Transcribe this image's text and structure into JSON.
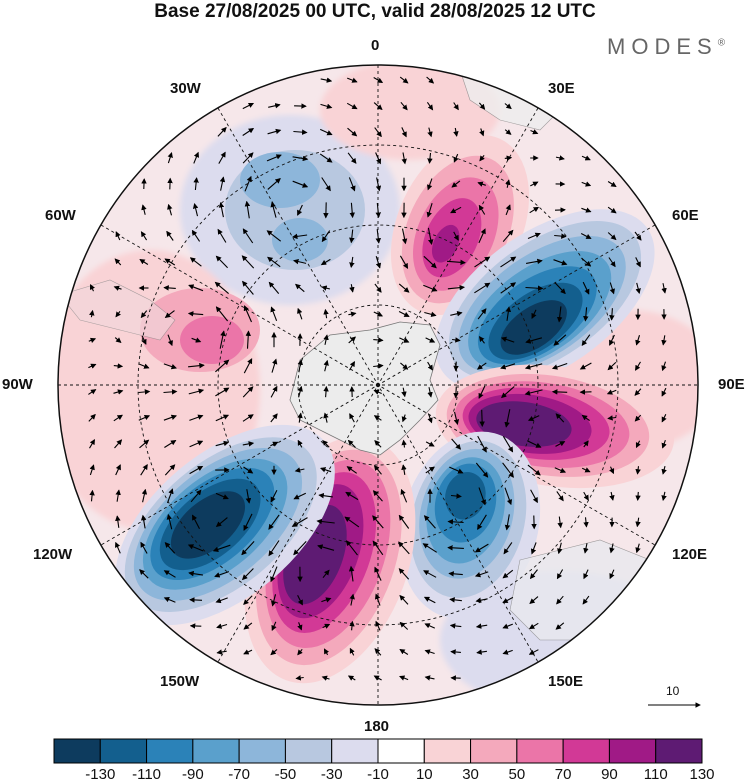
{
  "title": "Base 27/08/2025 00 UTC, valid 28/08/2025 12 UTC",
  "brand": "MODES",
  "brand_mark": "®",
  "longitude_labels": {
    "lon_0": "0",
    "lon_30e": "30E",
    "lon_60e": "60E",
    "lon_90e": "90E",
    "lon_120e": "120E",
    "lon_150e": "150E",
    "lon_180": "180",
    "lon_150w": "150W",
    "lon_120w": "120W",
    "lon_90w": "90W",
    "lon_60w": "60W",
    "lon_30w": "30W"
  },
  "reference_vector": {
    "label": "10"
  },
  "colorbar": {
    "colors": [
      "#0d3b5e",
      "#135f8e",
      "#2b82b8",
      "#5aa0cc",
      "#8db6da",
      "#b8c8e0",
      "#dcdcee",
      "#ffffff",
      "#f9d3d6",
      "#f4a9bc",
      "#eb75a8",
      "#d23996",
      "#a01a86",
      "#5e1b73"
    ],
    "ticks": [
      "-130",
      "-110",
      "-90",
      "-70",
      "-50",
      "-30",
      "-10",
      "10",
      "30",
      "50",
      "70",
      "90",
      "110",
      "130"
    ]
  },
  "chart_data": {
    "type": "polar_stereographic_map",
    "title": "Base 27/08/2025 00 UTC, valid 28/08/2025 12 UTC",
    "projection": "south polar stereographic",
    "field": "anomaly (shaded) with wind vectors",
    "contour_levels": [
      -130,
      -110,
      -90,
      -70,
      -50,
      -30,
      -10,
      10,
      30,
      50,
      70,
      90,
      110,
      130
    ],
    "anomaly_centers": [
      {
        "longitude": "~20E",
        "sign": "positive",
        "peak_level": 110
      },
      {
        "longitude": "~60E",
        "sign": "negative",
        "peak_level": -130
      },
      {
        "longitude": "~100E",
        "sign": "positive",
        "peak_level": 130
      },
      {
        "longitude": "~140E",
        "sign": "negative",
        "peak_level": -110
      },
      {
        "longitude": "~160W",
        "sign": "positive",
        "peak_level": 130
      },
      {
        "longitude": "~130W",
        "sign": "negative",
        "peak_level": -130
      },
      {
        "longitude": "~80W",
        "sign": "positive",
        "peak_level": 70
      },
      {
        "longitude": "~20W",
        "sign": "negative",
        "peak_level": -50
      }
    ],
    "reference_vector": 10
  }
}
